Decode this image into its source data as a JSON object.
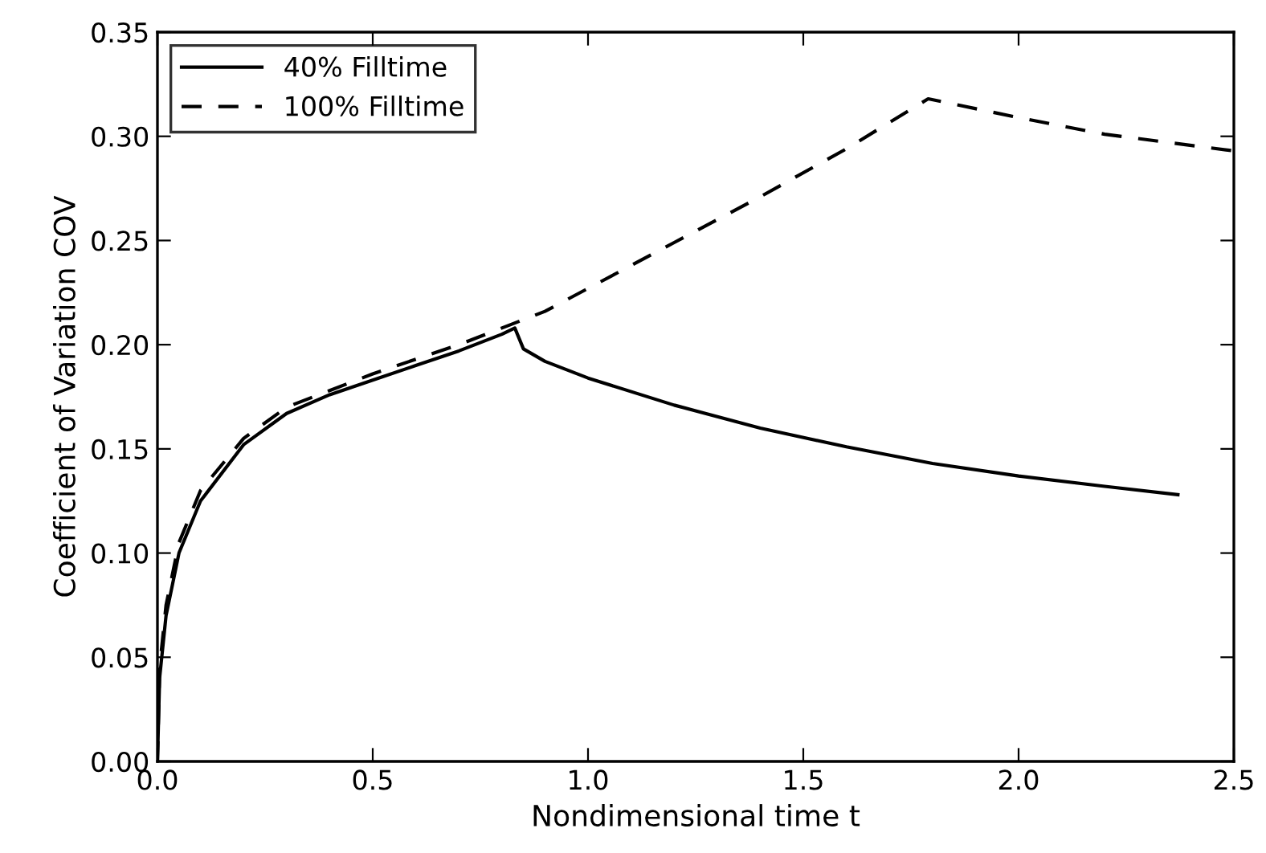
{
  "chart_data": {
    "type": "line",
    "xlabel": "Nondimensional time t",
    "ylabel": "Coefficient of Variation COV",
    "xlim": [
      0,
      2.5
    ],
    "xticks": [
      {
        "value": 0,
        "label": "0.0"
      },
      0.5,
      {
        "value": 1,
        "label": "1.0"
      },
      1.5,
      {
        "value": 2,
        "label": "2.0"
      },
      2.5
    ],
    "ylim": [
      0,
      0.35
    ],
    "yticks": [
      {
        "value": 0,
        "label": "0.00"
      },
      0.05,
      {
        "value": 0.1,
        "label": "0.10"
      },
      0.15,
      {
        "value": 0.2,
        "label": "0.20"
      },
      0.25,
      {
        "value": 0.3,
        "label": "0.30"
      },
      0.35
    ],
    "grid": false,
    "legend": "top left",
    "marker": "none",
    "series": [
      {
        "name": "40% Filltime",
        "color": "#000000",
        "line_style": "solid",
        "x": [
          0,
          0.005,
          0.02,
          0.05,
          0.1,
          0.2,
          0.3,
          0.4,
          0.5,
          0.6,
          0.7,
          0.8,
          0.83,
          0.85,
          0.9,
          1.0,
          1.2,
          1.4,
          1.6,
          1.8,
          2.0,
          2.2,
          2.37
        ],
        "values": [
          0,
          0.04,
          0.07,
          0.1,
          0.125,
          0.152,
          0.167,
          0.176,
          0.183,
          0.19,
          0.197,
          0.205,
          0.208,
          0.198,
          0.192,
          0.184,
          0.171,
          0.16,
          0.151,
          0.143,
          0.137,
          0.132,
          0.128
        ]
      },
      {
        "name": "100% Filltime",
        "color": "#000000",
        "line_style": "dashed",
        "x": [
          0,
          0.005,
          0.02,
          0.05,
          0.1,
          0.2,
          0.3,
          0.4,
          0.5,
          0.6,
          0.7,
          0.8,
          0.9,
          1.0,
          1.2,
          1.4,
          1.6,
          1.79,
          2.0,
          2.2,
          2.5
        ],
        "values": [
          0,
          0.045,
          0.075,
          0.105,
          0.13,
          0.155,
          0.17,
          0.178,
          0.186,
          0.193,
          0.2,
          0.208,
          0.216,
          0.227,
          0.249,
          0.271,
          0.294,
          0.318,
          0.309,
          0.301,
          0.293
        ]
      }
    ]
  }
}
